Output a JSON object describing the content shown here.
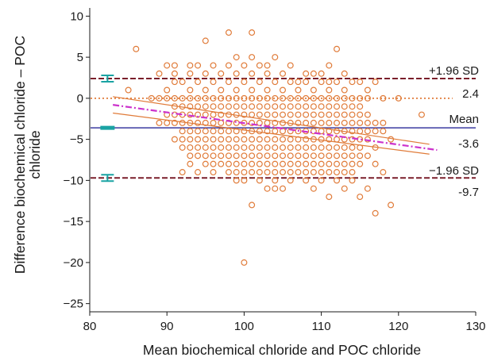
{
  "chart_data": {
    "type": "scatter",
    "title": "",
    "xlabel": "Mean biochemical chloride and POC chloride",
    "ylabel_line1": "Difference biochemical chloride – POC",
    "ylabel_line2": "chloride",
    "xlim": [
      80,
      130
    ],
    "ylim": [
      -26,
      11
    ],
    "xticks": [
      80,
      90,
      100,
      110,
      120,
      130
    ],
    "yticks": [
      10,
      5,
      0,
      -5,
      -10,
      -15,
      -20,
      -25
    ],
    "xtick_labels": [
      "80",
      "90",
      "100",
      "110",
      "120",
      "130"
    ],
    "ytick_labels": [
      "10",
      "5",
      "0",
      "−5",
      "−10",
      "−15",
      "−20",
      "−25"
    ],
    "marker_color": "#e07b39",
    "annotations": {
      "upper_label": "+1.96 SD",
      "upper_value": "2.4",
      "mean_label": "Mean",
      "mean_value": "-3.6",
      "lower_label": "−1.96 SD",
      "lower_value": "-9.7"
    },
    "reference_lines": {
      "upper_loa": 2.4,
      "mean": -3.6,
      "lower_loa": -9.7,
      "zero": 0,
      "upper_color": "#7a1f2b",
      "mean_color": "#3a3aa0",
      "zero_color": "#e07b39",
      "ci_color": "#1aa3a3"
    },
    "regression": {
      "fit": {
        "x": [
          83,
          125
        ],
        "y": [
          -0.8,
          -6.3
        ],
        "color": "#cc33cc"
      },
      "upper_ci": {
        "x": [
          83,
          124
        ],
        "y": [
          0.2,
          -5.6
        ],
        "color": "#e07b39"
      },
      "lower_ci": {
        "x": [
          83,
          124
        ],
        "y": [
          -1.8,
          -6.8
        ],
        "color": "#e07b39"
      }
    },
    "points": [
      [
        86,
        6
      ],
      [
        98,
        8
      ],
      [
        101,
        8
      ],
      [
        95,
        7
      ],
      [
        112,
        6
      ],
      [
        99,
        5
      ],
      [
        101,
        5
      ],
      [
        102,
        4
      ],
      [
        104,
        5
      ],
      [
        106,
        4
      ],
      [
        111,
        4
      ],
      [
        85,
        1
      ],
      [
        88,
        0
      ],
      [
        90,
        4
      ],
      [
        91,
        4
      ],
      [
        93,
        4
      ],
      [
        94,
        4
      ],
      [
        96,
        4
      ],
      [
        98,
        4
      ],
      [
        100,
        4
      ],
      [
        103,
        4
      ],
      [
        105,
        3
      ],
      [
        108,
        3
      ],
      [
        110,
        3
      ],
      [
        113,
        3
      ],
      [
        115,
        2
      ],
      [
        117,
        2
      ],
      [
        120,
        0
      ],
      [
        123,
        -2
      ],
      [
        89,
        3
      ],
      [
        91,
        3
      ],
      [
        92,
        2
      ],
      [
        93,
        3
      ],
      [
        94,
        2
      ],
      [
        95,
        3
      ],
      [
        96,
        2
      ],
      [
        97,
        3
      ],
      [
        98,
        2
      ],
      [
        99,
        3
      ],
      [
        100,
        2
      ],
      [
        101,
        3
      ],
      [
        102,
        2
      ],
      [
        103,
        3
      ],
      [
        104,
        2
      ],
      [
        106,
        2
      ],
      [
        107,
        2
      ],
      [
        108,
        2
      ],
      [
        109,
        3
      ],
      [
        110,
        2
      ],
      [
        111,
        2
      ],
      [
        112,
        2
      ],
      [
        114,
        2
      ],
      [
        90,
        1
      ],
      [
        91,
        2
      ],
      [
        93,
        1
      ],
      [
        95,
        1
      ],
      [
        97,
        1
      ],
      [
        99,
        1
      ],
      [
        101,
        1
      ],
      [
        103,
        1
      ],
      [
        105,
        1
      ],
      [
        107,
        1
      ],
      [
        109,
        1
      ],
      [
        111,
        1
      ],
      [
        113,
        1
      ],
      [
        116,
        1
      ],
      [
        89,
        0
      ],
      [
        90,
        0
      ],
      [
        91,
        0
      ],
      [
        92,
        0
      ],
      [
        93,
        0
      ],
      [
        94,
        0
      ],
      [
        95,
        0
      ],
      [
        96,
        0
      ],
      [
        97,
        0
      ],
      [
        98,
        0
      ],
      [
        99,
        0
      ],
      [
        100,
        0
      ],
      [
        101,
        0
      ],
      [
        102,
        0
      ],
      [
        103,
        0
      ],
      [
        104,
        0
      ],
      [
        105,
        0
      ],
      [
        106,
        0
      ],
      [
        107,
        0
      ],
      [
        108,
        0
      ],
      [
        109,
        0
      ],
      [
        110,
        0
      ],
      [
        111,
        0
      ],
      [
        112,
        0
      ],
      [
        113,
        0
      ],
      [
        114,
        0
      ],
      [
        115,
        0
      ],
      [
        116,
        0
      ],
      [
        118,
        0
      ],
      [
        91,
        -1
      ],
      [
        92,
        -1
      ],
      [
        93,
        -1
      ],
      [
        94,
        -1
      ],
      [
        95,
        -1
      ],
      [
        96,
        -1
      ],
      [
        97,
        -1
      ],
      [
        98,
        -1
      ],
      [
        99,
        -1
      ],
      [
        100,
        -1
      ],
      [
        101,
        -1
      ],
      [
        102,
        -1
      ],
      [
        103,
        -1
      ],
      [
        104,
        -1
      ],
      [
        105,
        -1
      ],
      [
        106,
        -1
      ],
      [
        107,
        -1
      ],
      [
        108,
        -1
      ],
      [
        109,
        -1
      ],
      [
        110,
        -1
      ],
      [
        111,
        -1
      ],
      [
        112,
        -1
      ],
      [
        113,
        -1
      ],
      [
        114,
        -1
      ],
      [
        115,
        -1
      ],
      [
        90,
        -2
      ],
      [
        91,
        -2
      ],
      [
        92,
        -2
      ],
      [
        93,
        -2
      ],
      [
        94,
        -2
      ],
      [
        95,
        -2
      ],
      [
        96,
        -2
      ],
      [
        97,
        -2
      ],
      [
        98,
        -2
      ],
      [
        99,
        -2
      ],
      [
        100,
        -2
      ],
      [
        101,
        -2
      ],
      [
        102,
        -2
      ],
      [
        103,
        -2
      ],
      [
        104,
        -2
      ],
      [
        105,
        -2
      ],
      [
        106,
        -2
      ],
      [
        107,
        -2
      ],
      [
        108,
        -2
      ],
      [
        109,
        -2
      ],
      [
        110,
        -2
      ],
      [
        111,
        -2
      ],
      [
        112,
        -2
      ],
      [
        113,
        -2
      ],
      [
        114,
        -2
      ],
      [
        115,
        -2
      ],
      [
        116,
        -2
      ],
      [
        89,
        -3
      ],
      [
        90,
        -3
      ],
      [
        91,
        -3
      ],
      [
        92,
        -3
      ],
      [
        93,
        -3
      ],
      [
        94,
        -3
      ],
      [
        95,
        -3
      ],
      [
        96,
        -3
      ],
      [
        97,
        -3
      ],
      [
        98,
        -3
      ],
      [
        99,
        -3
      ],
      [
        100,
        -3
      ],
      [
        101,
        -3
      ],
      [
        102,
        -3
      ],
      [
        103,
        -3
      ],
      [
        104,
        -3
      ],
      [
        105,
        -3
      ],
      [
        106,
        -3
      ],
      [
        107,
        -3
      ],
      [
        108,
        -3
      ],
      [
        109,
        -3
      ],
      [
        110,
        -3
      ],
      [
        111,
        -3
      ],
      [
        112,
        -3
      ],
      [
        113,
        -3
      ],
      [
        114,
        -3
      ],
      [
        115,
        -3
      ],
      [
        116,
        -3
      ],
      [
        117,
        -3
      ],
      [
        118,
        -3
      ],
      [
        92,
        -4
      ],
      [
        93,
        -4
      ],
      [
        94,
        -4
      ],
      [
        95,
        -4
      ],
      [
        96,
        -4
      ],
      [
        97,
        -4
      ],
      [
        98,
        -4
      ],
      [
        99,
        -4
      ],
      [
        100,
        -4
      ],
      [
        101,
        -4
      ],
      [
        102,
        -4
      ],
      [
        103,
        -4
      ],
      [
        104,
        -4
      ],
      [
        105,
        -4
      ],
      [
        106,
        -4
      ],
      [
        107,
        -4
      ],
      [
        108,
        -4
      ],
      [
        109,
        -4
      ],
      [
        110,
        -4
      ],
      [
        111,
        -4
      ],
      [
        112,
        -4
      ],
      [
        113,
        -4
      ],
      [
        114,
        -4
      ],
      [
        115,
        -4
      ],
      [
        116,
        -4
      ],
      [
        117,
        -4
      ],
      [
        118,
        -4
      ],
      [
        91,
        -5
      ],
      [
        92,
        -5
      ],
      [
        93,
        -5
      ],
      [
        94,
        -5
      ],
      [
        95,
        -5
      ],
      [
        96,
        -5
      ],
      [
        97,
        -5
      ],
      [
        98,
        -5
      ],
      [
        99,
        -5
      ],
      [
        100,
        -5
      ],
      [
        101,
        -5
      ],
      [
        102,
        -5
      ],
      [
        103,
        -5
      ],
      [
        104,
        -5
      ],
      [
        105,
        -5
      ],
      [
        106,
        -5
      ],
      [
        107,
        -5
      ],
      [
        108,
        -5
      ],
      [
        109,
        -5
      ],
      [
        110,
        -5
      ],
      [
        111,
        -5
      ],
      [
        112,
        -5
      ],
      [
        113,
        -5
      ],
      [
        114,
        -5
      ],
      [
        115,
        -5
      ],
      [
        116,
        -5
      ],
      [
        119,
        -5
      ],
      [
        92,
        -6
      ],
      [
        93,
        -6
      ],
      [
        94,
        -6
      ],
      [
        95,
        -6
      ],
      [
        96,
        -6
      ],
      [
        97,
        -6
      ],
      [
        98,
        -6
      ],
      [
        99,
        -6
      ],
      [
        100,
        -6
      ],
      [
        101,
        -6
      ],
      [
        102,
        -6
      ],
      [
        103,
        -6
      ],
      [
        104,
        -6
      ],
      [
        105,
        -6
      ],
      [
        106,
        -6
      ],
      [
        107,
        -6
      ],
      [
        108,
        -6
      ],
      [
        109,
        -6
      ],
      [
        110,
        -6
      ],
      [
        111,
        -6
      ],
      [
        112,
        -6
      ],
      [
        113,
        -6
      ],
      [
        114,
        -6
      ],
      [
        115,
        -6
      ],
      [
        117,
        -6
      ],
      [
        93,
        -7
      ],
      [
        94,
        -7
      ],
      [
        95,
        -7
      ],
      [
        96,
        -7
      ],
      [
        97,
        -7
      ],
      [
        98,
        -7
      ],
      [
        99,
        -7
      ],
      [
        100,
        -7
      ],
      [
        101,
        -7
      ],
      [
        102,
        -7
      ],
      [
        103,
        -7
      ],
      [
        104,
        -7
      ],
      [
        105,
        -7
      ],
      [
        106,
        -7
      ],
      [
        107,
        -7
      ],
      [
        108,
        -7
      ],
      [
        109,
        -7
      ],
      [
        110,
        -7
      ],
      [
        111,
        -7
      ],
      [
        112,
        -7
      ],
      [
        113,
        -7
      ],
      [
        114,
        -7
      ],
      [
        115,
        -7
      ],
      [
        116,
        -7
      ],
      [
        93,
        -8
      ],
      [
        95,
        -8
      ],
      [
        96,
        -8
      ],
      [
        97,
        -8
      ],
      [
        98,
        -8
      ],
      [
        99,
        -8
      ],
      [
        100,
        -8
      ],
      [
        101,
        -8
      ],
      [
        102,
        -8
      ],
      [
        103,
        -8
      ],
      [
        104,
        -8
      ],
      [
        105,
        -8
      ],
      [
        106,
        -8
      ],
      [
        107,
        -8
      ],
      [
        108,
        -8
      ],
      [
        109,
        -8
      ],
      [
        110,
        -8
      ],
      [
        111,
        -8
      ],
      [
        112,
        -8
      ],
      [
        113,
        -8
      ],
      [
        114,
        -8
      ],
      [
        115,
        -8
      ],
      [
        117,
        -8
      ],
      [
        92,
        -9
      ],
      [
        94,
        -9
      ],
      [
        96,
        -9
      ],
      [
        98,
        -9
      ],
      [
        99,
        -9
      ],
      [
        100,
        -9
      ],
      [
        101,
        -9
      ],
      [
        102,
        -9
      ],
      [
        103,
        -9
      ],
      [
        104,
        -9
      ],
      [
        105,
        -9
      ],
      [
        106,
        -9
      ],
      [
        107,
        -9
      ],
      [
        108,
        -9
      ],
      [
        109,
        -9
      ],
      [
        110,
        -9
      ],
      [
        111,
        -9
      ],
      [
        112,
        -9
      ],
      [
        113,
        -9
      ],
      [
        114,
        -9
      ],
      [
        118,
        -9
      ],
      [
        99,
        -10
      ],
      [
        100,
        -10
      ],
      [
        102,
        -10
      ],
      [
        104,
        -10
      ],
      [
        106,
        -10
      ],
      [
        108,
        -10
      ],
      [
        110,
        -10
      ],
      [
        112,
        -10
      ],
      [
        114,
        -10
      ],
      [
        103,
        -11
      ],
      [
        104,
        -11
      ],
      [
        105,
        -11
      ],
      [
        109,
        -11
      ],
      [
        113,
        -11
      ],
      [
        116,
        -11
      ],
      [
        111,
        -12
      ],
      [
        115,
        -12
      ],
      [
        101,
        -13
      ],
      [
        119,
        -13
      ],
      [
        117,
        -14
      ],
      [
        100,
        -20
      ]
    ]
  }
}
